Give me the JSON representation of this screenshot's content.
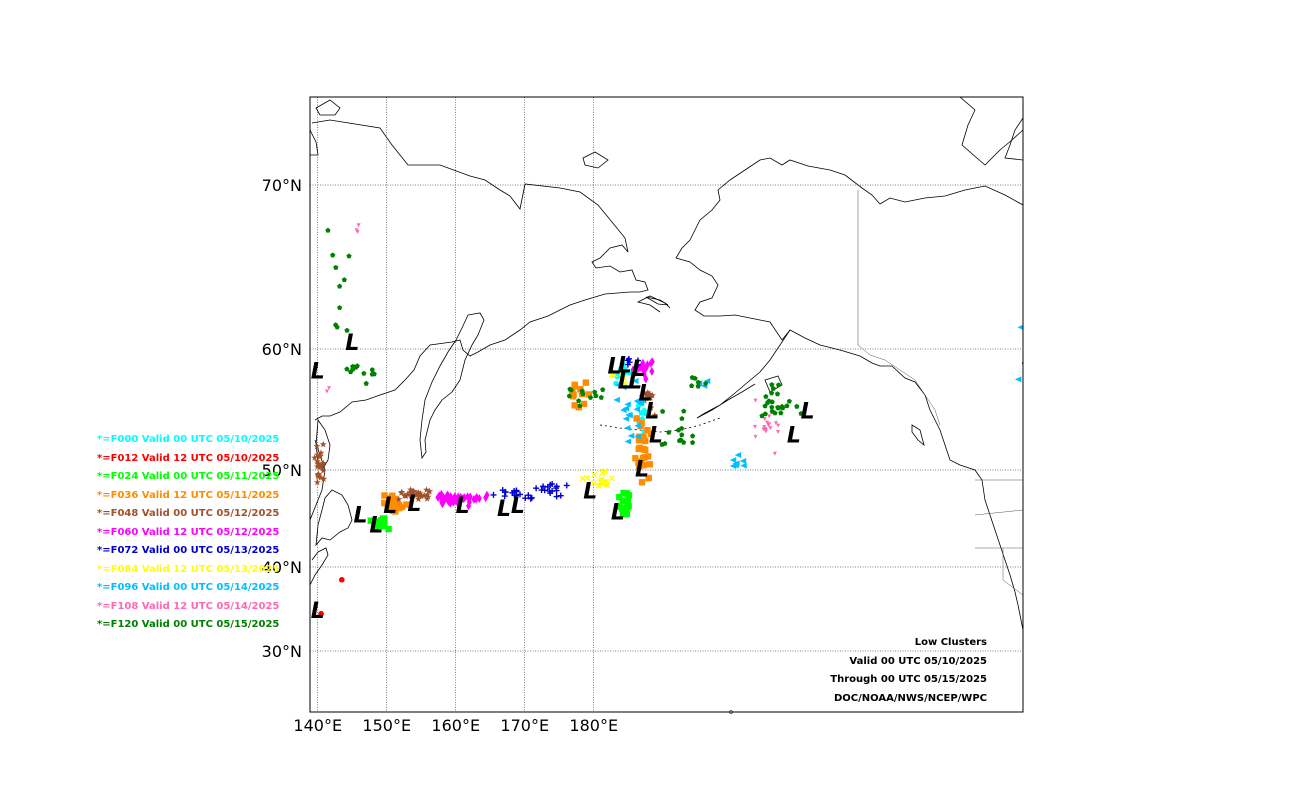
{
  "map": {
    "lat_labels": [
      "70°N",
      "60°N",
      "50°N",
      "40°N",
      "30°N"
    ],
    "lon_labels": [
      "140°E",
      "150°E",
      "160°E",
      "170°E",
      "180°E"
    ]
  },
  "legend": [
    {
      "text": "*=F000 Valid 00 UTC 05/10/2025",
      "color": "#00ffff",
      "marker": "circle"
    },
    {
      "text": "*=F012 Valid 12 UTC 05/10/2025",
      "color": "#ff0000",
      "marker": "circle"
    },
    {
      "text": "*=F024 Valid 00 UTC 05/11/2025",
      "color": "#00ff00",
      "marker": "square"
    },
    {
      "text": "*=F036 Valid 12 UTC 05/11/2025",
      "color": "#ff8c00",
      "marker": "square"
    },
    {
      "text": "*=F048 Valid 00 UTC 05/12/2025",
      "color": "#a0522d",
      "marker": "star"
    },
    {
      "text": "*=F060 Valid 12 UTC 05/12/2025",
      "color": "#ff00ff",
      "marker": "diamond"
    },
    {
      "text": "*=F072 Valid 00 UTC 05/13/2025",
      "color": "#0000cd",
      "marker": "plus"
    },
    {
      "text": "*=F084 Valid 12 UTC 05/13/2025",
      "color": "#ffff00",
      "marker": "x"
    },
    {
      "text": "*=F096 Valid 00 UTC 05/14/2025",
      "color": "#00bfff",
      "marker": "triangle-left"
    },
    {
      "text": "*=F108 Valid 12 UTC 05/14/2025",
      "color": "#ff69b4",
      "marker": "triangle-down"
    },
    {
      "text": "*=F120 Valid 00 UTC 05/15/2025",
      "color": "#008000",
      "marker": "pentagon"
    }
  ],
  "info": {
    "title": "Low Clusters",
    "valid": "Valid 00 UTC 05/10/2025",
    "through": "Through 00 UTC 05/15/2025",
    "source": "DOC/NOAA/NWS/NCEP/WPC"
  },
  "low_marker_text": "L",
  "clusters": [
    {
      "series": 0,
      "lon": 184.0,
      "lat": 58.0,
      "n": 14,
      "sx": 1.5,
      "sy": 0.8
    },
    {
      "series": 0,
      "lon": 187.0,
      "lat": 54.0,
      "n": 8,
      "sx": 1.0,
      "sy": 1.0
    },
    {
      "series": 1,
      "lon": 143.5,
      "lat": 38.5,
      "n": 1,
      "sx": 0.1,
      "sy": 0.1
    },
    {
      "series": 1,
      "lon": 140.5,
      "lat": 34.5,
      "n": 1,
      "sx": 0.1,
      "sy": 0.1
    },
    {
      "series": 2,
      "lon": 149.0,
      "lat": 44.5,
      "n": 24,
      "sx": 1.2,
      "sy": 0.5
    },
    {
      "series": 2,
      "lon": 184.5,
      "lat": 46.5,
      "n": 18,
      "sx": 0.6,
      "sy": 0.9
    },
    {
      "series": 3,
      "lon": 151.0,
      "lat": 46.5,
      "n": 28,
      "sx": 1.2,
      "sy": 0.8
    },
    {
      "series": 3,
      "lon": 187.0,
      "lat": 51.5,
      "n": 30,
      "sx": 1.0,
      "sy": 2.0
    },
    {
      "series": 3,
      "lon": 178.0,
      "lat": 56.5,
      "n": 12,
      "sx": 1.6,
      "sy": 0.8
    },
    {
      "series": 4,
      "lon": 140.2,
      "lat": 50.5,
      "n": 24,
      "sx": 0.5,
      "sy": 1.5
    },
    {
      "series": 4,
      "lon": 154.0,
      "lat": 47.5,
      "n": 30,
      "sx": 2.2,
      "sy": 0.5
    },
    {
      "series": 4,
      "lon": 188.0,
      "lat": 56.0,
      "n": 14,
      "sx": 1.0,
      "sy": 1.0
    },
    {
      "series": 5,
      "lon": 160.0,
      "lat": 47.0,
      "n": 40,
      "sx": 3.2,
      "sy": 0.5
    },
    {
      "series": 5,
      "lon": 187.5,
      "lat": 58.5,
      "n": 16,
      "sx": 1.2,
      "sy": 0.8
    },
    {
      "series": 6,
      "lon": 168.5,
      "lat": 47.5,
      "n": 16,
      "sx": 2.5,
      "sy": 0.5
    },
    {
      "series": 6,
      "lon": 174.0,
      "lat": 48.0,
      "n": 16,
      "sx": 2.0,
      "sy": 0.6
    },
    {
      "series": 6,
      "lon": 186.0,
      "lat": 59.0,
      "n": 6,
      "sx": 1.0,
      "sy": 0.6
    },
    {
      "series": 7,
      "lon": 180.5,
      "lat": 49.0,
      "n": 18,
      "sx": 2.0,
      "sy": 0.7
    },
    {
      "series": 7,
      "lon": 184.0,
      "lat": 57.5,
      "n": 6,
      "sx": 1.0,
      "sy": 0.6
    },
    {
      "series": 8,
      "lon": 185.5,
      "lat": 55.0,
      "n": 22,
      "sx": 1.8,
      "sy": 2.5
    },
    {
      "series": 8,
      "lon": 201.0,
      "lat": 50.5,
      "n": 8,
      "sx": 0.8,
      "sy": 0.8
    },
    {
      "series": 8,
      "lon": 196.0,
      "lat": 57.0,
      "n": 3,
      "sx": 0.5,
      "sy": 0.3
    },
    {
      "series": 8,
      "lon": 242.0,
      "lat": 61.5,
      "n": 2,
      "sx": 0.6,
      "sy": 0.2
    },
    {
      "series": 8,
      "lon": 241.5,
      "lat": 57.5,
      "n": 1,
      "sx": 0.1,
      "sy": 0.1
    },
    {
      "series": 9,
      "lon": 205.0,
      "lat": 53.5,
      "n": 18,
      "sx": 1.8,
      "sy": 1.5
    },
    {
      "series": 9,
      "lon": 146.0,
      "lat": 67.5,
      "n": 3,
      "sx": 0.8,
      "sy": 0.5
    },
    {
      "series": 9,
      "lon": 141.5,
      "lat": 56.5,
      "n": 2,
      "sx": 0.3,
      "sy": 0.3
    },
    {
      "series": 10,
      "lon": 143.0,
      "lat": 63.0,
      "n": 10,
      "sx": 1.8,
      "sy": 4.0
    },
    {
      "series": 10,
      "lon": 146.0,
      "lat": 58.0,
      "n": 12,
      "sx": 2.2,
      "sy": 0.8
    },
    {
      "series": 10,
      "lon": 178.0,
      "lat": 56.0,
      "n": 12,
      "sx": 2.8,
      "sy": 0.8
    },
    {
      "series": 10,
      "lon": 192.0,
      "lat": 53.0,
      "n": 14,
      "sx": 2.5,
      "sy": 1.5
    },
    {
      "series": 10,
      "lon": 206.0,
      "lat": 55.5,
      "n": 24,
      "sx": 2.8,
      "sy": 1.2
    },
    {
      "series": 10,
      "lon": 195.0,
      "lat": 57.0,
      "n": 6,
      "sx": 1.0,
      "sy": 0.5
    }
  ],
  "lows": [
    [
      140.0,
      58.3
    ],
    [
      145.0,
      60.5
    ],
    [
      140.0,
      35.0
    ],
    [
      146.2,
      45.5
    ],
    [
      148.5,
      44.5
    ],
    [
      150.5,
      46.5
    ],
    [
      154.0,
      46.7
    ],
    [
      161.0,
      46.5
    ],
    [
      167.0,
      46.2
    ],
    [
      169.0,
      46.5
    ],
    [
      179.5,
      48.0
    ],
    [
      183.5,
      45.8
    ],
    [
      183.0,
      58.7
    ],
    [
      184.5,
      58.8
    ],
    [
      186.5,
      58.5
    ],
    [
      184.5,
      57.5
    ],
    [
      186.0,
      57.5
    ],
    [
      187.5,
      56.5
    ],
    [
      188.5,
      55.0
    ],
    [
      189.0,
      53.0
    ],
    [
      187.0,
      50.2
    ],
    [
      209.0,
      53.0
    ],
    [
      211.0,
      55.0
    ],
    [
      243.0,
      59.5
    ]
  ]
}
